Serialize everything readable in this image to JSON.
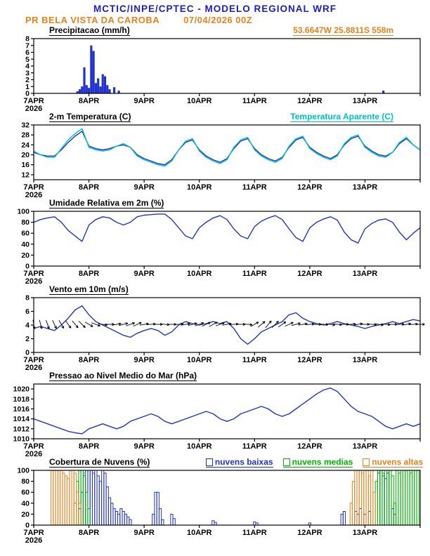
{
  "colors": {
    "header_blue": "#1c1ccc",
    "orange": "#e8821e",
    "line_blue": "#2233cc",
    "cyan": "#00c3c3",
    "green": "#00b400",
    "black": "#000000"
  },
  "header": {
    "line1": "MCTIC/INPE/CPTEC - MODELO REGIONAL WRF",
    "station": "PR BELA VISTA DA CAROBA",
    "run": "07/04/2026 00Z"
  },
  "xaxis": {
    "range_hours": [
      0,
      168
    ],
    "tick_every_hours": 24,
    "labels": [
      "7APR",
      "8APR",
      "9APR",
      "10APR",
      "11APR",
      "12APR",
      "13APR"
    ],
    "year": "2026"
  },
  "chart_data": [
    {
      "id": "precipitation",
      "type": "bar",
      "title": "Precipitacao (mm/h)",
      "right_label": "53.6647W 25.8811S 558m",
      "ylim": [
        0,
        8
      ],
      "yticks": [
        0,
        1,
        2,
        3,
        4,
        5,
        6,
        7,
        8
      ],
      "color": "#2233cc",
      "bars": [
        [
          19,
          0.3
        ],
        [
          20,
          0.6
        ],
        [
          21,
          1.0
        ],
        [
          22,
          3.8
        ],
        [
          23,
          1.2
        ],
        [
          24,
          0.8
        ],
        [
          25,
          7.0
        ],
        [
          26,
          6.2
        ],
        [
          27,
          1.5
        ],
        [
          28,
          2.2
        ],
        [
          29,
          1.0
        ],
        [
          30,
          2.8
        ],
        [
          31,
          2.5
        ],
        [
          32,
          1.2
        ],
        [
          33,
          0.6
        ],
        [
          35,
          0.9
        ],
        [
          37,
          0.4
        ],
        [
          152,
          0.4
        ]
      ]
    },
    {
      "id": "temperature",
      "type": "line",
      "title": "2-m Temperatura (C)",
      "right_title": "Temperatura Aparente (C)",
      "ylim": [
        10,
        32
      ],
      "yticks": [
        12,
        16,
        20,
        24,
        28,
        32
      ],
      "x_start": 0,
      "x_step": 3,
      "series": [
        {
          "name": "2-m Temperatura",
          "color": "#2233cc",
          "values": [
            21,
            20,
            19.5,
            19.5,
            22,
            25,
            27.5,
            29.5,
            23.5,
            22.5,
            22,
            22.5,
            23.5,
            24,
            23,
            20,
            18.5,
            17.5,
            16.5,
            16,
            18,
            22,
            25,
            26,
            22,
            19.5,
            18,
            17,
            18.5,
            22.5,
            25.5,
            26.5,
            22.5,
            20,
            18.5,
            17.5,
            19,
            23,
            26,
            27,
            23,
            21,
            19.5,
            18.5,
            20,
            24,
            26.5,
            27.5,
            23.5,
            21.5,
            20,
            19.5,
            21,
            24.5,
            26.5,
            24,
            22
          ]
        },
        {
          "name": "Temperatura Aparente",
          "color": "#00c3c3",
          "values": [
            21.5,
            20,
            19,
            19,
            22.5,
            26,
            28.5,
            30.5,
            23,
            22,
            21.5,
            22,
            23.5,
            24.5,
            23,
            19.5,
            18,
            17,
            16,
            15.5,
            17.5,
            22,
            25.5,
            26.5,
            21.5,
            19,
            17.5,
            16.5,
            18,
            23,
            26,
            27,
            22,
            19.5,
            18,
            17,
            18.5,
            23.5,
            26.5,
            27.5,
            22.5,
            20.5,
            19,
            18,
            19.5,
            24.5,
            27,
            28,
            23,
            21,
            19.5,
            19,
            21,
            25,
            27,
            24,
            22
          ]
        }
      ]
    },
    {
      "id": "humidity",
      "type": "line",
      "title": "Umidade Relativa em 2m (%)",
      "ylim": [
        0,
        100
      ],
      "yticks": [
        0,
        20,
        40,
        60,
        80,
        100
      ],
      "x_start": 0,
      "x_step": 3,
      "series": [
        {
          "name": "Umidade Relativa",
          "color": "#2233cc",
          "values": [
            80,
            85,
            88,
            90,
            80,
            65,
            55,
            45,
            75,
            85,
            90,
            88,
            80,
            75,
            80,
            90,
            93,
            94,
            95,
            95,
            85,
            70,
            55,
            50,
            70,
            80,
            88,
            92,
            85,
            68,
            55,
            50,
            72,
            82,
            88,
            92,
            85,
            68,
            52,
            45,
            70,
            80,
            86,
            90,
            84,
            62,
            48,
            42,
            68,
            78,
            84,
            86,
            80,
            62,
            48,
            60,
            70
          ]
        }
      ]
    },
    {
      "id": "wind",
      "type": "line",
      "title": "Vento em 10m (m/s)",
      "ylim": [
        0,
        8
      ],
      "yticks": [
        0,
        2,
        4,
        6,
        8
      ],
      "x_start": 0,
      "x_step": 3,
      "series": [
        {
          "name": "Vento 10m",
          "color": "#2233cc",
          "values": [
            3.5,
            3.8,
            3.5,
            3.2,
            4,
            5,
            6.2,
            6.8,
            5.5,
            4.5,
            4,
            3.5,
            3,
            2.5,
            2.2,
            2.8,
            3.2,
            3.5,
            3.2,
            2.5,
            3,
            4,
            4.5,
            4.2,
            4,
            4.2,
            4.5,
            4.2,
            4.5,
            3.5,
            2,
            1.2,
            2,
            3,
            3.5,
            4,
            4.5,
            5.5,
            5.8,
            5,
            4.5,
            4.2,
            4,
            4.2,
            4.5,
            4.2,
            4,
            3.8,
            3.5,
            3.8,
            4,
            4.2,
            4.5,
            4.2,
            4.5,
            4.8,
            4.6
          ]
        }
      ],
      "barbs": {
        "anchor_value": 4.1,
        "step_hours": 3,
        "color": "#000000",
        "dirs_deg": [
          -80,
          -75,
          -70,
          -65,
          -60,
          -55,
          -50,
          -45,
          -30,
          -20,
          -10,
          0,
          10,
          15,
          20,
          25,
          10,
          5,
          0,
          -5,
          0,
          5,
          10,
          15,
          20,
          25,
          30,
          20,
          10,
          5,
          0,
          -5,
          30,
          40,
          50,
          45,
          35,
          25,
          15,
          10,
          5,
          0,
          -5,
          -10,
          -5,
          0,
          5,
          10,
          0,
          -5,
          -10,
          -5,
          0,
          5,
          10,
          5,
          0
        ]
      }
    },
    {
      "id": "pressure",
      "type": "line",
      "title": "Pressao ao Nivel Medio do Mar (hPa)",
      "ylim": [
        1010,
        1021
      ],
      "yticks": [
        1010,
        1012,
        1014,
        1016,
        1018,
        1020
      ],
      "x_start": 0,
      "x_step": 3,
      "series": [
        {
          "name": "Pressao nivel do mar",
          "color": "#2233cc",
          "values": [
            1014,
            1013.5,
            1013,
            1012.5,
            1012,
            1011.5,
            1011.2,
            1011,
            1012,
            1012.5,
            1013,
            1012.5,
            1012,
            1012.5,
            1013.5,
            1014,
            1014.5,
            1015,
            1014.5,
            1013.5,
            1013,
            1013.5,
            1014,
            1014.5,
            1015,
            1015.5,
            1015,
            1014,
            1013.5,
            1014,
            1015,
            1015.5,
            1016,
            1016.5,
            1016,
            1015,
            1014.5,
            1015,
            1016,
            1017,
            1018,
            1019,
            1019.8,
            1020.2,
            1019.5,
            1018,
            1016.5,
            1015.5,
            1015,
            1014.5,
            1013.5,
            1012.5,
            1012,
            1012.5,
            1013,
            1012.5,
            1013
          ]
        }
      ]
    },
    {
      "id": "clouds",
      "type": "bar",
      "title": "Cobertura de Nuvens (%)",
      "ylim": [
        0,
        100
      ],
      "yticks": [
        0,
        20,
        40,
        60,
        80,
        100
      ],
      "series": [
        {
          "name": "nuvens baixas",
          "color": "#2233cc",
          "bars": [
            [
              20,
              30
            ],
            [
              21,
              60
            ],
            [
              22,
              90
            ],
            [
              23,
              100
            ],
            [
              24,
              100
            ],
            [
              25,
              100
            ],
            [
              26,
              95
            ],
            [
              27,
              100
            ],
            [
              28,
              90
            ],
            [
              29,
              80
            ],
            [
              30,
              100
            ],
            [
              31,
              95
            ],
            [
              32,
              70
            ],
            [
              33,
              50
            ],
            [
              34,
              40
            ],
            [
              35,
              30
            ],
            [
              36,
              25
            ],
            [
              37,
              20
            ],
            [
              38,
              30
            ],
            [
              39,
              25
            ],
            [
              40,
              20
            ],
            [
              41,
              15
            ],
            [
              42,
              10
            ],
            [
              52,
              20
            ],
            [
              53,
              60
            ],
            [
              54,
              60
            ],
            [
              55,
              30
            ],
            [
              56,
              10
            ],
            [
              60,
              20
            ],
            [
              61,
              12
            ],
            [
              78,
              8
            ],
            [
              79,
              5
            ],
            [
              96,
              6
            ],
            [
              97,
              4
            ],
            [
              120,
              4
            ],
            [
              134,
              20
            ],
            [
              135,
              25
            ],
            [
              140,
              25
            ],
            [
              141,
              20
            ],
            [
              142,
              30
            ],
            [
              144,
              20
            ],
            [
              146,
              25
            ],
            [
              150,
              95
            ],
            [
              151,
              100
            ],
            [
              152,
              90
            ],
            [
              153,
              85
            ],
            [
              154,
              95
            ],
            [
              156,
              30
            ],
            [
              157,
              20
            ]
          ]
        },
        {
          "name": "nuvens medias",
          "color": "#00b400",
          "bars": [
            [
              18,
              40
            ],
            [
              19,
              80
            ],
            [
              20,
              100
            ],
            [
              21,
              100
            ],
            [
              22,
              95
            ],
            [
              23,
              60
            ],
            [
              24,
              30
            ],
            [
              149,
              80
            ],
            [
              150,
              100
            ],
            [
              151,
              100
            ],
            [
              152,
              95
            ],
            [
              153,
              100
            ],
            [
              154,
              100
            ],
            [
              155,
              100
            ],
            [
              156,
              90
            ],
            [
              157,
              40
            ],
            [
              158,
              100
            ],
            [
              159,
              95
            ],
            [
              160,
              100
            ],
            [
              161,
              100
            ],
            [
              162,
              100
            ],
            [
              163,
              100
            ],
            [
              164,
              95
            ],
            [
              165,
              100
            ],
            [
              166,
              100
            ],
            [
              167,
              100
            ]
          ]
        },
        {
          "name": "nuvens altas",
          "color": "#e8821e",
          "bars": [
            [
              8,
              100
            ],
            [
              9,
              100
            ],
            [
              10,
              100
            ],
            [
              11,
              100
            ],
            [
              12,
              100
            ],
            [
              13,
              95
            ],
            [
              14,
              90
            ],
            [
              15,
              85
            ],
            [
              16,
              100
            ],
            [
              17,
              100
            ],
            [
              18,
              95
            ],
            [
              19,
              60
            ],
            [
              20,
              40
            ],
            [
              138,
              40
            ],
            [
              139,
              80
            ],
            [
              140,
              100
            ],
            [
              141,
              100
            ],
            [
              142,
              100
            ],
            [
              143,
              95
            ],
            [
              144,
              100
            ],
            [
              145,
              100
            ],
            [
              146,
              90
            ],
            [
              147,
              100
            ],
            [
              148,
              60
            ]
          ]
        }
      ]
    }
  ]
}
